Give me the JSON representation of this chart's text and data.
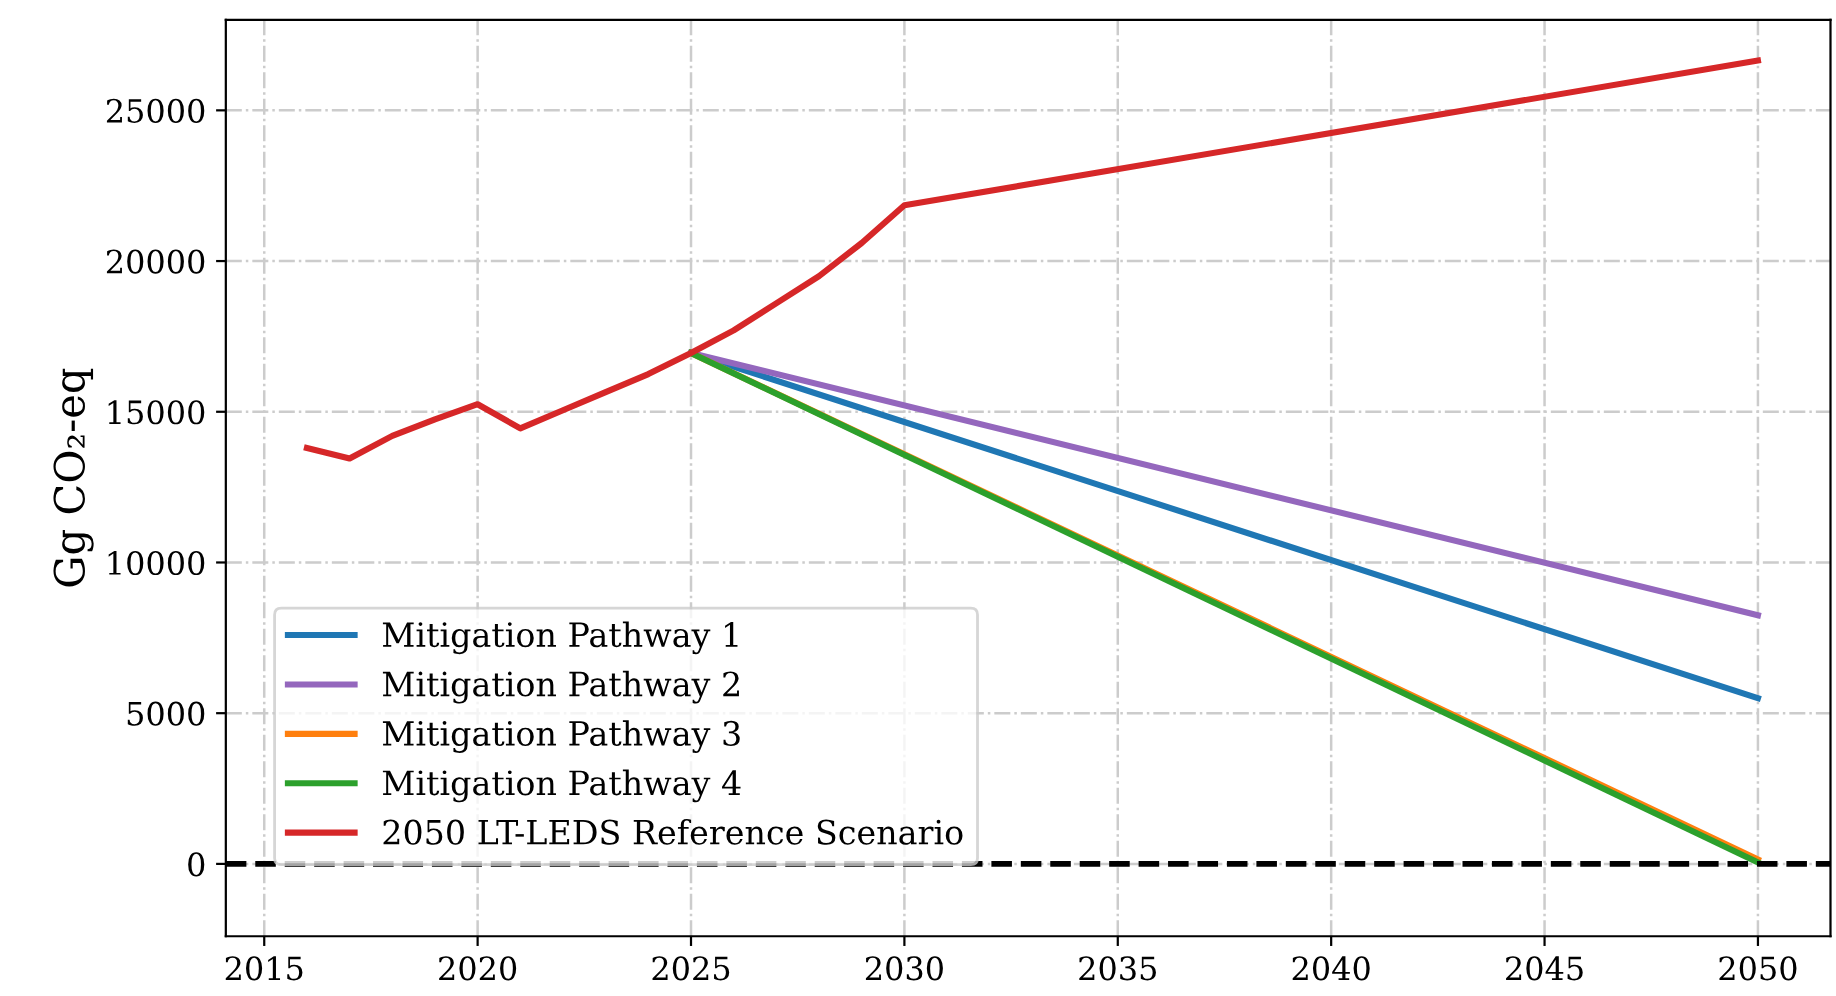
{
  "chart_data": {
    "type": "line",
    "ylabel": "Gg CO₂-eq",
    "series": [
      {
        "name": "Mitigation Pathway 1",
        "color": "#1f77b4",
        "x": [
          2025,
          2050
        ],
        "values": [
          16950,
          5500
        ]
      },
      {
        "name": "Mitigation Pathway 2",
        "color": "#9467bd",
        "x": [
          2025,
          2050
        ],
        "values": [
          16950,
          8250
        ]
      },
      {
        "name": "Mitigation Pathway 3",
        "color": "#ff7f0e",
        "x": [
          2025,
          2050
        ],
        "values": [
          16950,
          150
        ]
      },
      {
        "name": "Mitigation Pathway 4",
        "color": "#2ca02c",
        "x": [
          2025,
          2050
        ],
        "values": [
          16950,
          50
        ]
      },
      {
        "name": "2050 LT-LEDS Reference Scenario",
        "color": "#d62728",
        "x": [
          2016,
          2017,
          2018,
          2019,
          2020,
          2021,
          2022,
          2023,
          2024,
          2025,
          2026,
          2027,
          2028,
          2029,
          2030,
          2050
        ],
        "values": [
          13800,
          13450,
          14200,
          14750,
          15250,
          14450,
          15050,
          15650,
          16250,
          16950,
          17700,
          18600,
          19500,
          20600,
          21850,
          26650
        ]
      }
    ],
    "xlim": [
      2014.1,
      2051.7
    ],
    "xticks": [
      2015,
      2020,
      2025,
      2030,
      2035,
      2040,
      2045,
      2050
    ],
    "ylim": [
      -2400,
      28000
    ],
    "yticks": [
      0,
      5000,
      10000,
      15000,
      20000,
      25000
    ],
    "ref_lines": [
      {
        "axis": "y",
        "value": 0,
        "color": "#000000",
        "line_style": "dashed"
      }
    ],
    "grid": true,
    "legend": "bottom left",
    "marker": "none",
    "line_style": "solid"
  }
}
